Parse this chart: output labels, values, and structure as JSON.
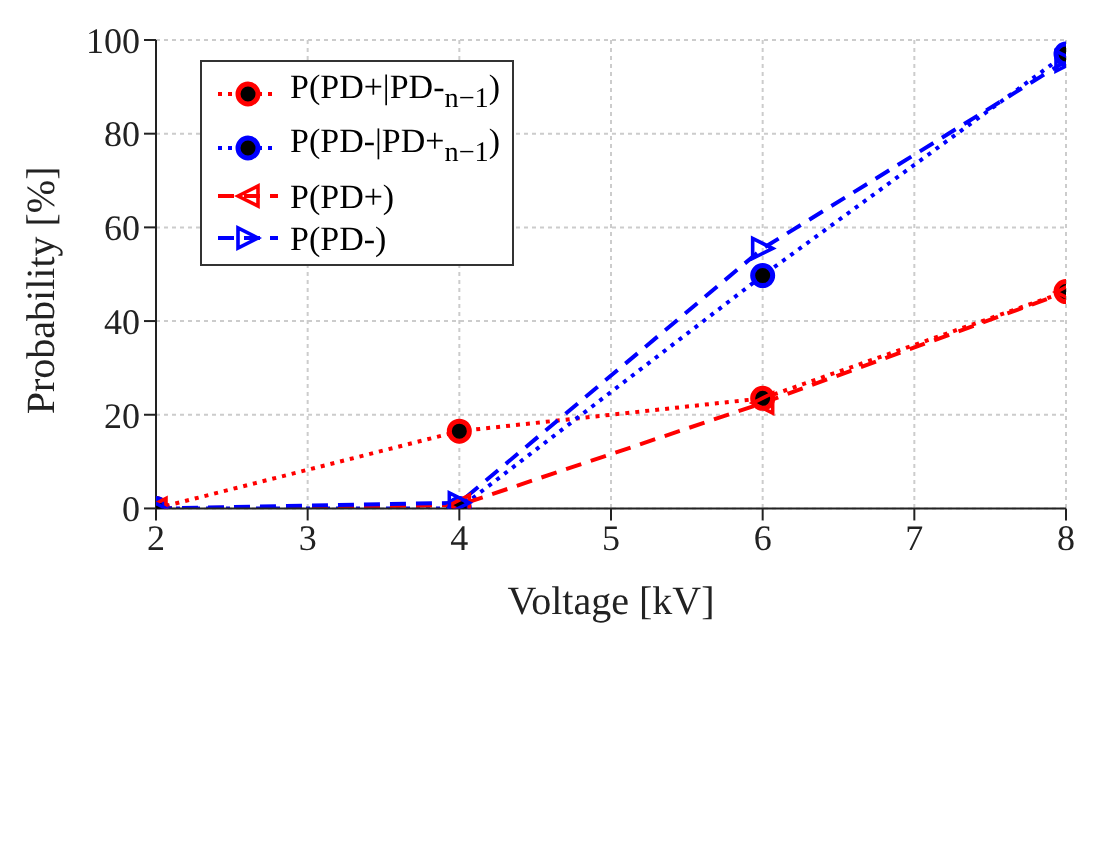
{
  "chart_data": {
    "type": "line",
    "xlabel": "Voltage [kV]",
    "ylabel": "Probability [%]",
    "x": [
      2,
      4,
      6,
      8
    ],
    "series": [
      {
        "name": "P(PD+|PD-$_{n−1}$)",
        "color": "#ff0000",
        "values": [
          0,
          16.5,
          23.5,
          46.3
        ],
        "marker": "circle",
        "line_style": "dotted"
      },
      {
        "name": "P(PD-|PD+$_{n−1}$)",
        "color": "#0000ff",
        "values": [
          0,
          0,
          49.7,
          97
        ],
        "marker": "circle",
        "line_style": "dotted"
      },
      {
        "name": "P(PD+)",
        "color": "#ff0000",
        "values": [
          0,
          0.7,
          22.5,
          46.2
        ],
        "marker": "triangle-left",
        "line_style": "dashed"
      },
      {
        "name": "P(PD-)",
        "color": "#0000ff",
        "values": [
          0,
          1.2,
          55.5,
          95.5
        ],
        "marker": "triangle-right",
        "line_style": "dashed"
      }
    ],
    "xlim": [
      2,
      8
    ],
    "xticks": [
      2,
      3,
      4,
      5,
      6,
      7,
      8
    ],
    "ylim": [
      0,
      100
    ],
    "yticks": [
      0,
      20,
      40,
      60,
      80,
      100
    ],
    "grid": true,
    "legend": "top left"
  }
}
